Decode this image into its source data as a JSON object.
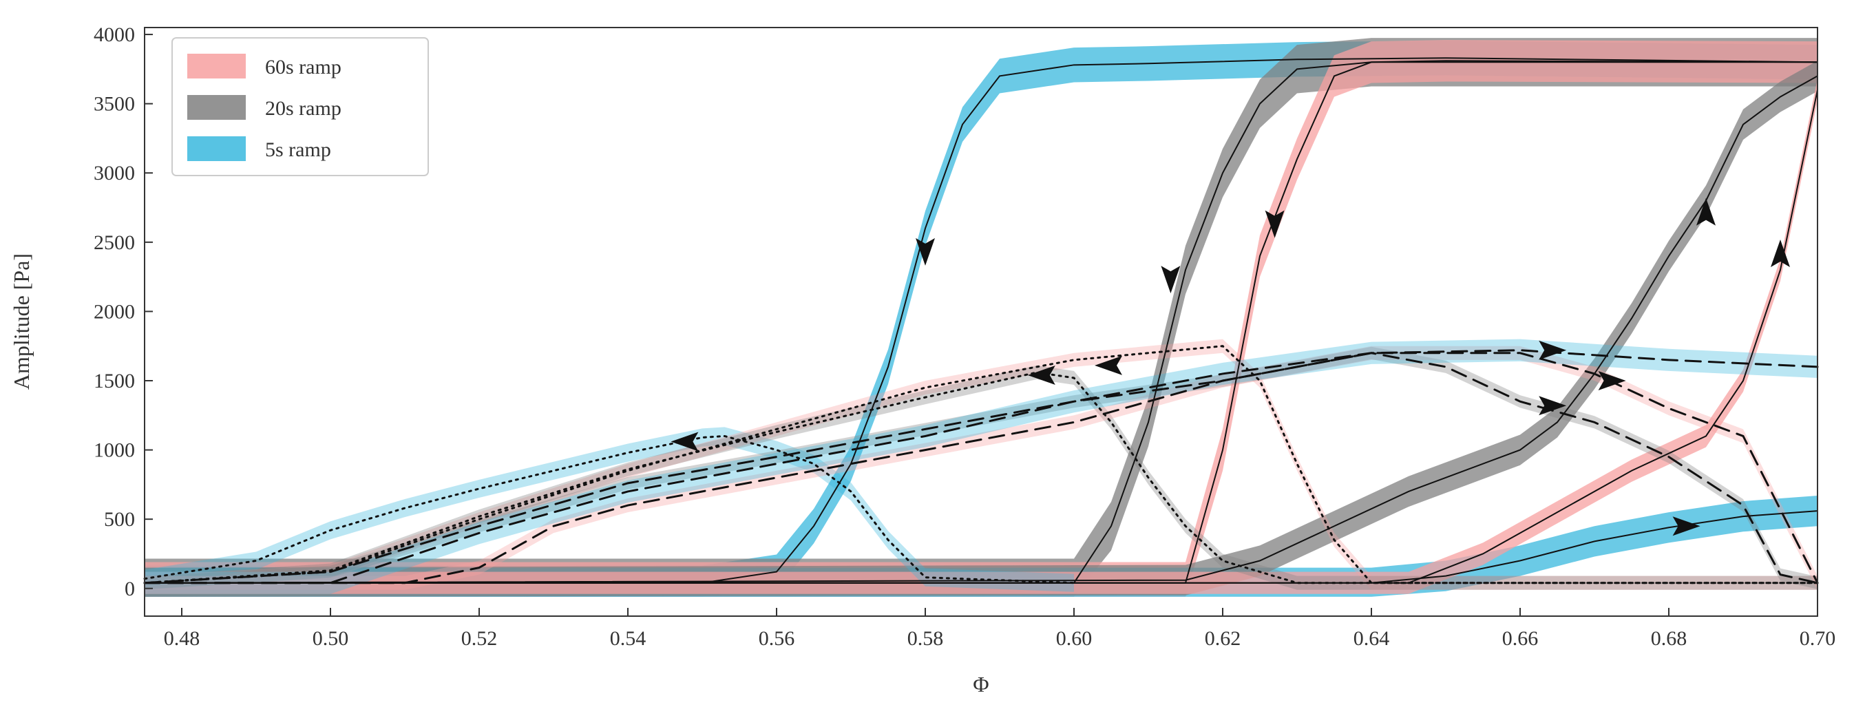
{
  "chart_data": {
    "type": "line",
    "title": "",
    "xlabel": "Φ",
    "ylabel": "Amplitude [Pa]",
    "xlim": [
      0.475,
      0.7
    ],
    "ylim": [
      -200,
      4050
    ],
    "xticks": [
      0.48,
      0.5,
      0.52,
      0.54,
      0.56,
      0.58,
      0.6,
      0.62,
      0.64,
      0.66,
      0.68,
      0.7
    ],
    "xtick_labels": [
      "0.48",
      "0.50",
      "0.52",
      "0.54",
      "0.56",
      "0.58",
      "0.60",
      "0.62",
      "0.64",
      "0.66",
      "0.68",
      "0.70"
    ],
    "yticks": [
      0,
      500,
      1000,
      1500,
      2000,
      2500,
      3000,
      3500,
      4000
    ],
    "ytick_labels": [
      "0",
      "500",
      "1000",
      "1500",
      "2000",
      "2500",
      "3000",
      "3500",
      "4000"
    ],
    "grid": false,
    "legend_position": "top-left",
    "legend": [
      {
        "label": "60s ramp",
        "color": "#f7a0a0"
      },
      {
        "label": "20s ramp",
        "color": "#808080"
      },
      {
        "label": "5s ramp",
        "color": "#3ab8de"
      }
    ],
    "series": [
      {
        "ramp": "5s ramp",
        "color": "#3ab8de",
        "linestyle": "solid",
        "band": 250,
        "x": [
          0.475,
          0.55,
          0.56,
          0.565,
          0.57,
          0.575,
          0.58,
          0.585,
          0.59,
          0.6,
          0.61,
          0.63,
          0.65,
          0.7
        ],
        "y": [
          40,
          40,
          120,
          450,
          900,
          1600,
          2600,
          3350,
          3700,
          3780,
          3790,
          3820,
          3830,
          3800
        ],
        "arrows": [
          {
            "x": 0.58,
            "y": 2450,
            "dir": "down"
          }
        ]
      },
      {
        "ramp": "20s ramp",
        "color": "#808080",
        "linestyle": "solid",
        "band": 350,
        "x": [
          0.475,
          0.6,
          0.605,
          0.61,
          0.615,
          0.62,
          0.625,
          0.63,
          0.64,
          0.7
        ],
        "y": [
          40,
          40,
          450,
          1200,
          2300,
          3000,
          3500,
          3750,
          3800,
          3800
        ],
        "arrows": [
          {
            "x": 0.613,
            "y": 2250,
            "dir": "down"
          }
        ]
      },
      {
        "ramp": "60s ramp",
        "color": "#f7a0a0",
        "linestyle": "solid",
        "band": 300,
        "x": [
          0.475,
          0.615,
          0.62,
          0.625,
          0.63,
          0.635,
          0.64,
          0.65,
          0.7
        ],
        "y": [
          40,
          40,
          1000,
          2400,
          3100,
          3700,
          3800,
          3810,
          3800
        ],
        "arrows": [
          {
            "x": 0.627,
            "y": 2650,
            "dir": "down"
          }
        ]
      },
      {
        "ramp": "5s ramp",
        "color": "#3ab8de",
        "linestyle": "solid",
        "band": 220,
        "x": [
          0.475,
          0.64,
          0.65,
          0.66,
          0.67,
          0.68,
          0.69,
          0.7
        ],
        "y": [
          40,
          40,
          90,
          200,
          340,
          440,
          520,
          560
        ],
        "arrows": [
          {
            "x": 0.682,
            "y": 450,
            "dir": "right"
          }
        ]
      },
      {
        "ramp": "20s ramp",
        "color": "#808080",
        "linestyle": "solid",
        "band": 220,
        "x": [
          0.475,
          0.615,
          0.625,
          0.635,
          0.645,
          0.655,
          0.66,
          0.665,
          0.67,
          0.675,
          0.68,
          0.685,
          0.69,
          0.695,
          0.7
        ],
        "y": [
          40,
          60,
          200,
          450,
          700,
          900,
          1000,
          1200,
          1550,
          1950,
          2400,
          2800,
          3350,
          3550,
          3700
        ],
        "arrows": [
          {
            "x": 0.685,
            "y": 2700,
            "dir": "up"
          }
        ]
      },
      {
        "ramp": "60s ramp",
        "color": "#f7a0a0",
        "linestyle": "solid",
        "band": 160,
        "x": [
          0.475,
          0.645,
          0.655,
          0.665,
          0.675,
          0.685,
          0.69,
          0.695,
          0.7
        ],
        "y": [
          40,
          40,
          250,
          550,
          850,
          1100,
          1500,
          2300,
          3600
        ],
        "arrows": [
          {
            "x": 0.695,
            "y": 2400,
            "dir": "up"
          }
        ]
      },
      {
        "ramp": "5s ramp",
        "color": "#3ab8de",
        "linestyle": "dotted",
        "band": 130,
        "x": [
          0.475,
          0.49,
          0.5,
          0.51,
          0.52,
          0.53,
          0.54,
          0.55,
          0.553,
          0.56,
          0.565,
          0.57,
          0.575,
          0.58,
          0.6
        ],
        "y": [
          70,
          200,
          420,
          580,
          720,
          850,
          980,
          1090,
          1100,
          1000,
          900,
          700,
          350,
          80,
          40
        ],
        "arrows": [
          {
            "x": 0.548,
            "y": 1060,
            "dir": "left"
          }
        ]
      },
      {
        "ramp": "60s ramp",
        "color": "#f7a0a0",
        "linestyle": "dotted",
        "band": 100,
        "x": [
          0.475,
          0.5,
          0.52,
          0.54,
          0.56,
          0.58,
          0.6,
          0.62,
          0.625,
          0.63,
          0.635,
          0.64,
          0.7
        ],
        "y": [
          40,
          120,
          500,
          850,
          1150,
          1450,
          1650,
          1750,
          1500,
          900,
          350,
          40,
          40
        ],
        "arrows": [
          {
            "x": 0.605,
            "y": 1610,
            "dir": "left"
          }
        ]
      },
      {
        "ramp": "20s ramp",
        "color": "#808080",
        "linestyle": "dotted",
        "band": 100,
        "x": [
          0.475,
          0.5,
          0.52,
          0.54,
          0.56,
          0.58,
          0.595,
          0.6,
          0.605,
          0.61,
          0.615,
          0.62,
          0.63,
          0.7
        ],
        "y": [
          40,
          130,
          520,
          860,
          1130,
          1380,
          1560,
          1520,
          1200,
          800,
          450,
          200,
          40,
          40
        ],
        "arrows": [
          {
            "x": 0.596,
            "y": 1540,
            "dir": "left"
          }
        ]
      },
      {
        "ramp": "20s ramp",
        "color": "#808080",
        "linestyle": "dashed",
        "band": 90,
        "x": [
          0.475,
          0.5,
          0.52,
          0.54,
          0.56,
          0.58,
          0.6,
          0.62,
          0.64,
          0.65,
          0.66,
          0.67,
          0.68,
          0.69,
          0.695,
          0.7
        ],
        "y": [
          40,
          120,
          450,
          760,
          950,
          1150,
          1350,
          1500,
          1700,
          1600,
          1350,
          1200,
          950,
          600,
          100,
          40
        ],
        "arrows": [
          {
            "x": 0.664,
            "y": 1320,
            "dir": "right"
          }
        ]
      },
      {
        "ramp": "60s ramp",
        "color": "#f7a0a0",
        "linestyle": "dashed",
        "band": 100,
        "x": [
          0.475,
          0.5,
          0.51,
          0.52,
          0.53,
          0.54,
          0.56,
          0.58,
          0.6,
          0.62,
          0.64,
          0.66,
          0.67,
          0.68,
          0.69,
          0.7
        ],
        "y": [
          40,
          40,
          40,
          150,
          450,
          600,
          800,
          1000,
          1200,
          1500,
          1700,
          1700,
          1550,
          1300,
          1100,
          40
        ],
        "arrows": [
          {
            "x": 0.672,
            "y": 1500,
            "dir": "right"
          }
        ]
      },
      {
        "ramp": "5s ramp",
        "color": "#3ab8de",
        "linestyle": "dashed",
        "band": 160,
        "x": [
          0.475,
          0.5,
          0.52,
          0.54,
          0.56,
          0.58,
          0.6,
          0.62,
          0.64,
          0.66,
          0.68,
          0.7
        ],
        "y": [
          40,
          40,
          400,
          700,
          900,
          1100,
          1350,
          1550,
          1700,
          1720,
          1650,
          1600
        ],
        "arrows": [
          {
            "x": 0.664,
            "y": 1720,
            "dir": "right"
          }
        ]
      }
    ]
  }
}
